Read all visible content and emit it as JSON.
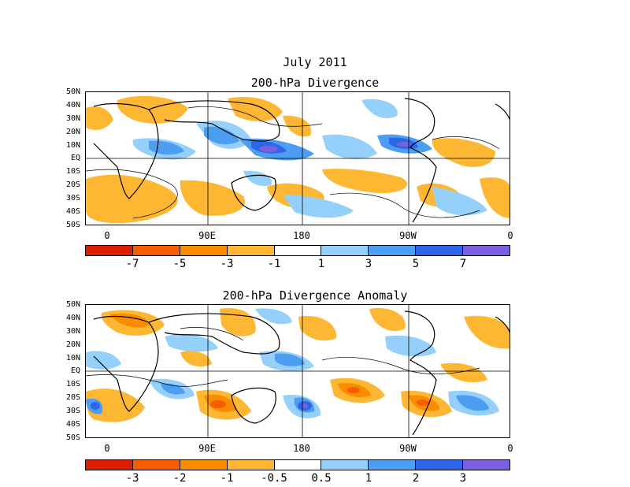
{
  "header": {
    "month": "July 2011"
  },
  "panels": [
    {
      "title": "200-hPa Divergence",
      "lat_labels": [
        "50N",
        "40N",
        "30N",
        "20N",
        "10N",
        "EQ",
        "10S",
        "20S",
        "30S",
        "40S",
        "50S"
      ],
      "lon_labels": [
        "0",
        "90E",
        "180",
        "90W",
        "0"
      ],
      "colorbar_labels": [
        "-7",
        "-5",
        "-3",
        "-1",
        "1",
        "3",
        "5",
        "7"
      ]
    },
    {
      "title": "200-hPa Divergence Anomaly",
      "lat_labels": [
        "50N",
        "40N",
        "30N",
        "20N",
        "10N",
        "EQ",
        "10S",
        "20S",
        "30S",
        "40S",
        "50S"
      ],
      "lon_labels": [
        "0",
        "90E",
        "180",
        "90W",
        "0"
      ],
      "colorbar_labels": [
        "-3",
        "-2",
        "-1",
        "-0.5",
        "0.5",
        "1",
        "2",
        "3"
      ]
    }
  ],
  "colorbar_colors": [
    "#dd1f00",
    "#f65d00",
    "#fb8c00",
    "#fdb733",
    "#ffffff",
    "#95d0fb",
    "#4c9ef3",
    "#2d66e8",
    "#7b5fdc"
  ],
  "contour_label": "0"
}
